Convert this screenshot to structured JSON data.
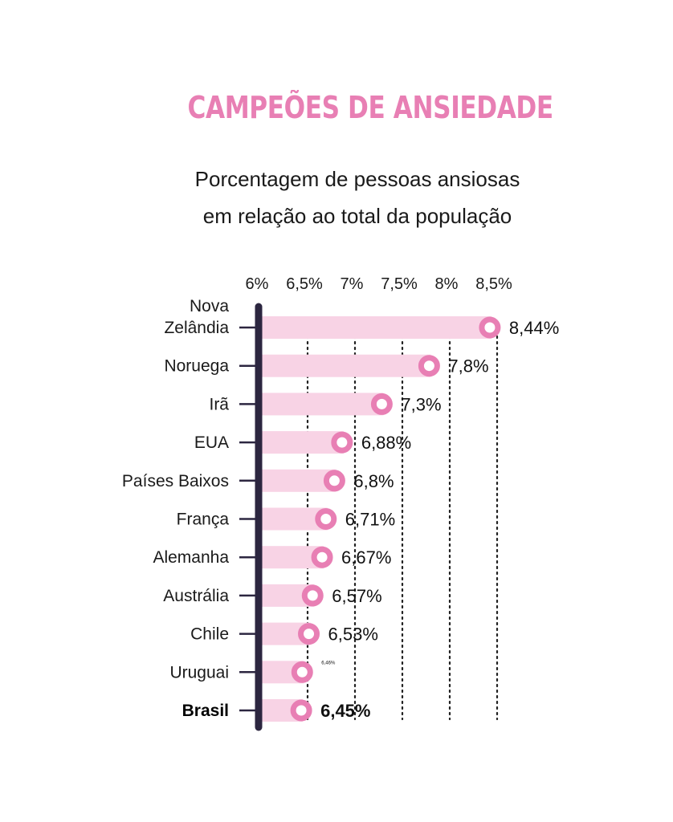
{
  "chart_data": {
    "type": "bar",
    "title": "CAMPEÕES DE ANSIEDADE",
    "subtitle_lines": [
      "Porcentagem de pessoas ansiosas",
      "em relação ao total da população"
    ],
    "x_ticks": [
      "6%",
      "6,5%",
      "7%",
      "7,5%",
      "8%",
      "8,5%"
    ],
    "x_tick_values": [
      6,
      6.5,
      7,
      7.5,
      8,
      8.5
    ],
    "xlim": [
      5.9,
      8.6
    ],
    "categories": [
      "Nova\nZelândia",
      "Noruega",
      "Irã",
      "EUA",
      "Países Baixos",
      "França",
      "Alemanha",
      "Austrália",
      "Chile",
      "Uruguai",
      "Brasil"
    ],
    "values": [
      8.44,
      7.8,
      7.3,
      6.88,
      6.8,
      6.71,
      6.67,
      6.57,
      6.53,
      6.46,
      6.45
    ],
    "value_labels": [
      "8,44%",
      "7,8%",
      "7,3%",
      "6,88%",
      "6,8%",
      "6,71%",
      "6,67%",
      "6,57%",
      "6,53%",
      "6,46%",
      "6,45%"
    ],
    "highlight_category": "Brasil",
    "grid": "dotted vertical",
    "colors": {
      "title": "#e87fb4",
      "bar": "#f8d3e5",
      "marker": "#e87fb4",
      "axis": "#2c2640",
      "text": "#1a1a1a"
    }
  }
}
